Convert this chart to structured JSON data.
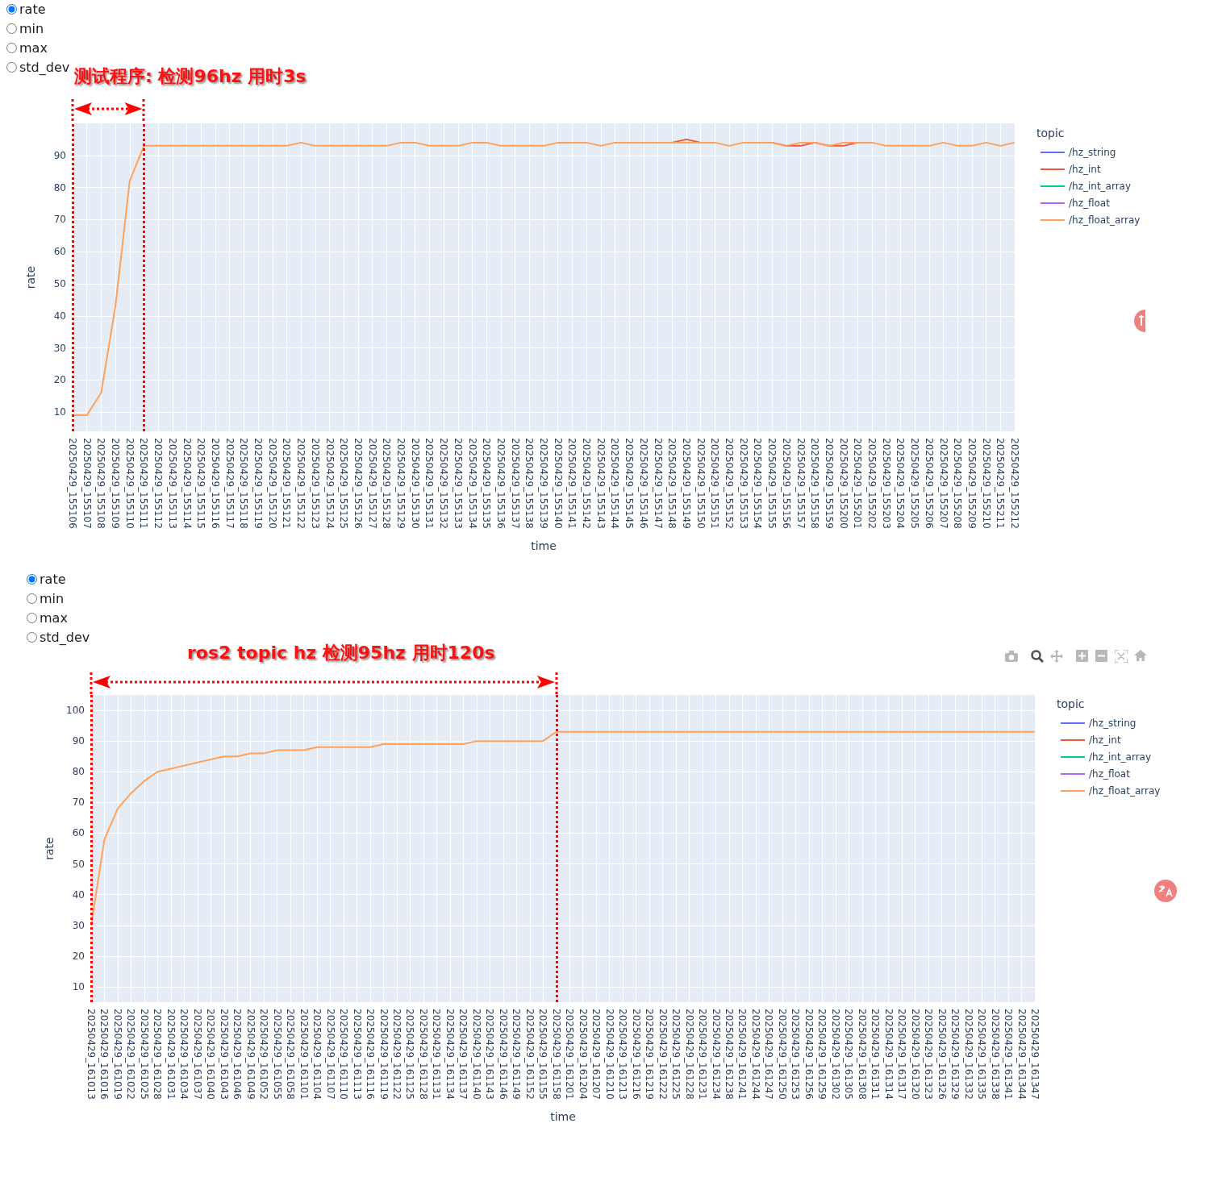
{
  "chart_data": [
    {
      "type": "line",
      "xlabel": "time",
      "ylabel": "rate",
      "legend_title": "topic",
      "legend": "top right",
      "grid": true,
      "annotations": [
        "rate",
        "min",
        "max",
        "std_dev",
        "测试程序: 检测96hz 用时3s"
      ],
      "ref_lines": [
        {
          "axis": "x",
          "value": "20250429_155106",
          "color": "#ff0000",
          "line_style": "dotted"
        },
        {
          "axis": "x",
          "value": "20250429_155111",
          "color": "#ff0000",
          "line_style": "dotted"
        }
      ],
      "ylim": [
        4,
        100
      ],
      "yticks": [
        10,
        20,
        30,
        40,
        50,
        60,
        70,
        80,
        90
      ],
      "categories": [
        "20250429_155106",
        "20250429_155107",
        "20250429_155108",
        "20250429_155109",
        "20250429_155110",
        "20250429_155111",
        "20250429_155112",
        "20250429_155113",
        "20250429_155114",
        "20250429_155115",
        "20250429_155116",
        "20250429_155117",
        "20250429_155118",
        "20250429_155119",
        "20250429_155120",
        "20250429_155121",
        "20250429_155122",
        "20250429_155123",
        "20250429_155124",
        "20250429_155125",
        "20250429_155126",
        "20250429_155127",
        "20250429_155128",
        "20250429_155129",
        "20250429_155130",
        "20250429_155131",
        "20250429_155132",
        "20250429_155133",
        "20250429_155134",
        "20250429_155135",
        "20250429_155136",
        "20250429_155137",
        "20250429_155138",
        "20250429_155139",
        "20250429_155140",
        "20250429_155141",
        "20250429_155142",
        "20250429_155143",
        "20250429_155144",
        "20250429_155145",
        "20250429_155146",
        "20250429_155147",
        "20250429_155148",
        "20250429_155149",
        "20250429_155150",
        "20250429_155151",
        "20250429_155152",
        "20250429_155153",
        "20250429_155154",
        "20250429_155155",
        "20250429_155156",
        "20250429_155157",
        "20250429_155158",
        "20250429_155159",
        "20250429_155200",
        "20250429_155201",
        "20250429_155202",
        "20250429_155203",
        "20250429_155204",
        "20250429_155205",
        "20250429_155206",
        "20250429_155207",
        "20250429_155208",
        "20250429_155209",
        "20250429_155210",
        "20250429_155211",
        "20250429_155212"
      ],
      "series": [
        {
          "name": "/hz_string",
          "color": "#636efa",
          "values": [
            null,
            null,
            null,
            null,
            null,
            null,
            null,
            null,
            null,
            null,
            null,
            null,
            null,
            null,
            null,
            null,
            null,
            null,
            null,
            null,
            null,
            null,
            null,
            null,
            null,
            null,
            null,
            null,
            null,
            null,
            null,
            null,
            null,
            null,
            null,
            null,
            null,
            null,
            null,
            null,
            null,
            null,
            null,
            null,
            null,
            null,
            null,
            null,
            null,
            null,
            null,
            null,
            null,
            null,
            null,
            null,
            null,
            null,
            null,
            null,
            null,
            null,
            null,
            null,
            null,
            null,
            null
          ]
        },
        {
          "name": "/hz_int",
          "color": "#ef553b",
          "values": [
            null,
            null,
            null,
            null,
            null,
            null,
            null,
            null,
            null,
            null,
            null,
            null,
            null,
            null,
            null,
            null,
            null,
            null,
            null,
            null,
            null,
            null,
            null,
            null,
            null,
            null,
            null,
            null,
            null,
            null,
            null,
            null,
            null,
            null,
            null,
            null,
            null,
            null,
            null,
            null,
            null,
            null,
            94,
            95,
            94,
            null,
            null,
            null,
            null,
            94,
            93,
            93,
            94,
            93,
            93,
            94,
            null,
            null,
            null,
            null,
            null,
            null,
            null,
            null,
            null,
            null,
            null
          ]
        },
        {
          "name": "/hz_int_array",
          "color": "#00cc96",
          "values": [
            null,
            null,
            null,
            null,
            null,
            null,
            null,
            null,
            null,
            null,
            null,
            null,
            null,
            null,
            null,
            null,
            null,
            null,
            null,
            null,
            null,
            null,
            null,
            null,
            null,
            null,
            null,
            null,
            null,
            null,
            null,
            null,
            null,
            null,
            null,
            null,
            null,
            null,
            null,
            null,
            null,
            null,
            null,
            null,
            null,
            null,
            null,
            null,
            null,
            null,
            null,
            null,
            null,
            null,
            null,
            null,
            null,
            null,
            null,
            null,
            null,
            null,
            null,
            null,
            null,
            null,
            null
          ]
        },
        {
          "name": "/hz_float",
          "color": "#ab63fa",
          "values": [
            null,
            null,
            null,
            null,
            null,
            null,
            null,
            null,
            null,
            null,
            null,
            null,
            null,
            null,
            null,
            null,
            null,
            null,
            null,
            null,
            null,
            null,
            null,
            null,
            null,
            null,
            null,
            null,
            null,
            null,
            null,
            null,
            null,
            null,
            null,
            null,
            null,
            null,
            null,
            null,
            null,
            null,
            null,
            null,
            null,
            null,
            null,
            null,
            null,
            null,
            null,
            null,
            null,
            null,
            null,
            null,
            null,
            null,
            null,
            null,
            null,
            null,
            null,
            null,
            null,
            null,
            null
          ]
        },
        {
          "name": "/hz_float_array",
          "color": "#ffa15a",
          "values": [
            9,
            9,
            16,
            43,
            82,
            93,
            93,
            93,
            93,
            93,
            93,
            93,
            93,
            93,
            93,
            93,
            94,
            93,
            93,
            93,
            93,
            93,
            93,
            94,
            94,
            93,
            93,
            93,
            94,
            94,
            93,
            93,
            93,
            93,
            94,
            94,
            94,
            93,
            94,
            94,
            94,
            94,
            94,
            94,
            94,
            94,
            93,
            94,
            94,
            94,
            93,
            94,
            94,
            93,
            94,
            94,
            94,
            93,
            93,
            93,
            93,
            94,
            93,
            93,
            94,
            93,
            94
          ]
        }
      ]
    },
    {
      "type": "line",
      "xlabel": "time",
      "ylabel": "rate",
      "legend_title": "topic",
      "legend": "top right",
      "grid": true,
      "annotations": [
        "rate",
        "min",
        "max",
        "std_dev",
        "ros2 topic hz 检测95hz 用时120s"
      ],
      "ref_lines": [
        {
          "axis": "x",
          "value": "20250429_161013",
          "color": "#ff0000",
          "line_style": "dotted"
        },
        {
          "axis": "x",
          "value": "20250429_161158",
          "color": "#ff0000",
          "line_style": "dotted"
        }
      ],
      "ylim": [
        5,
        105
      ],
      "yticks": [
        10,
        20,
        30,
        40,
        50,
        60,
        70,
        80,
        90,
        100
      ],
      "categories": [
        "20250429_161013",
        "20250429_161016",
        "20250429_161019",
        "20250429_161022",
        "20250429_161025",
        "20250429_161028",
        "20250429_161031",
        "20250429_161034",
        "20250429_161037",
        "20250429_161040",
        "20250429_161043",
        "20250429_161046",
        "20250429_161049",
        "20250429_161052",
        "20250429_161055",
        "20250429_161058",
        "20250429_161101",
        "20250429_161104",
        "20250429_161107",
        "20250429_161110",
        "20250429_161113",
        "20250429_161116",
        "20250429_161119",
        "20250429_161122",
        "20250429_161125",
        "20250429_161128",
        "20250429_161131",
        "20250429_161134",
        "20250429_161137",
        "20250429_161140",
        "20250429_161143",
        "20250429_161146",
        "20250429_161149",
        "20250429_161152",
        "20250429_161155",
        "20250429_161158",
        "20250429_161201",
        "20250429_161204",
        "20250429_161207",
        "20250429_161210",
        "20250429_161213",
        "20250429_161216",
        "20250429_161219",
        "20250429_161222",
        "20250429_161225",
        "20250429_161228",
        "20250429_161231",
        "20250429_161234",
        "20250429_161238",
        "20250429_161241",
        "20250429_161244",
        "20250429_161247",
        "20250429_161250",
        "20250429_161253",
        "20250429_161256",
        "20250429_161259",
        "20250429_161302",
        "20250429_161305",
        "20250429_161308",
        "20250429_161311",
        "20250429_161314",
        "20250429_161317",
        "20250429_161320",
        "20250429_161323",
        "20250429_161326",
        "20250429_161329",
        "20250429_161332",
        "20250429_161335",
        "20250429_161338",
        "20250429_161341",
        "20250429_161344",
        "20250429_161347"
      ],
      "series": [
        {
          "name": "/hz_string",
          "color": "#636efa",
          "values": [
            null,
            null,
            null,
            null,
            null,
            null,
            null,
            null,
            null,
            null,
            null,
            null,
            null,
            null,
            null,
            null,
            null,
            null,
            null,
            null,
            null,
            null,
            null,
            null,
            null,
            null,
            null,
            null,
            null,
            null,
            null,
            null,
            null,
            null,
            null,
            null,
            null,
            null,
            null,
            null,
            null,
            null,
            null,
            null,
            null,
            null,
            null,
            null,
            null,
            null,
            null,
            null,
            null,
            null,
            null,
            null,
            null,
            null,
            null,
            null,
            null,
            null,
            null,
            null,
            null,
            null,
            null,
            null,
            null,
            null,
            null,
            null
          ]
        },
        {
          "name": "/hz_int",
          "color": "#ef553b",
          "values": [
            null,
            null,
            null,
            null,
            null,
            null,
            null,
            null,
            null,
            null,
            null,
            null,
            null,
            null,
            null,
            null,
            null,
            null,
            null,
            null,
            null,
            null,
            null,
            null,
            null,
            null,
            null,
            null,
            null,
            null,
            null,
            null,
            null,
            null,
            null,
            null,
            null,
            null,
            null,
            null,
            null,
            null,
            null,
            null,
            null,
            null,
            null,
            null,
            null,
            null,
            null,
            null,
            null,
            null,
            null,
            null,
            null,
            null,
            null,
            null,
            null,
            null,
            null,
            null,
            null,
            null,
            null,
            null,
            null,
            null,
            null,
            null
          ]
        },
        {
          "name": "/hz_int_array",
          "color": "#00cc96",
          "values": [
            null,
            null,
            null,
            null,
            null,
            null,
            null,
            null,
            null,
            null,
            null,
            null,
            null,
            null,
            null,
            null,
            null,
            null,
            null,
            null,
            null,
            null,
            null,
            null,
            null,
            null,
            null,
            null,
            null,
            null,
            null,
            null,
            null,
            null,
            null,
            null,
            null,
            null,
            null,
            null,
            null,
            null,
            null,
            null,
            null,
            null,
            null,
            null,
            null,
            null,
            null,
            null,
            null,
            null,
            null,
            null,
            null,
            null,
            null,
            null,
            null,
            null,
            null,
            null,
            null,
            null,
            null,
            null,
            null,
            null,
            null,
            null
          ]
        },
        {
          "name": "/hz_float",
          "color": "#ab63fa",
          "values": [
            null,
            null,
            null,
            null,
            null,
            null,
            null,
            null,
            null,
            null,
            null,
            null,
            null,
            null,
            null,
            null,
            null,
            null,
            null,
            null,
            null,
            null,
            null,
            null,
            null,
            null,
            null,
            null,
            null,
            null,
            null,
            null,
            null,
            null,
            null,
            null,
            null,
            null,
            null,
            null,
            null,
            null,
            null,
            null,
            null,
            null,
            null,
            null,
            null,
            null,
            null,
            null,
            null,
            null,
            null,
            null,
            null,
            null,
            null,
            null,
            null,
            null,
            null,
            null,
            null,
            null,
            null,
            null,
            null,
            null,
            null,
            null
          ]
        },
        {
          "name": "/hz_float_array",
          "color": "#ffa15a",
          "values": [
            30,
            58,
            68,
            73,
            77,
            80,
            81,
            82,
            83,
            84,
            85,
            85,
            86,
            86,
            87,
            87,
            87,
            88,
            88,
            88,
            88,
            88,
            89,
            89,
            89,
            89,
            89,
            89,
            89,
            90,
            90,
            90,
            90,
            90,
            90,
            93,
            93,
            93,
            93,
            93,
            93,
            93,
            93,
            93,
            93,
            93,
            93,
            93,
            93,
            93,
            93,
            93,
            93,
            93,
            93,
            93,
            93,
            93,
            93,
            93,
            93,
            93,
            93,
            93,
            93,
            93,
            93,
            93,
            93,
            93,
            93,
            93
          ]
        }
      ]
    }
  ]
}
